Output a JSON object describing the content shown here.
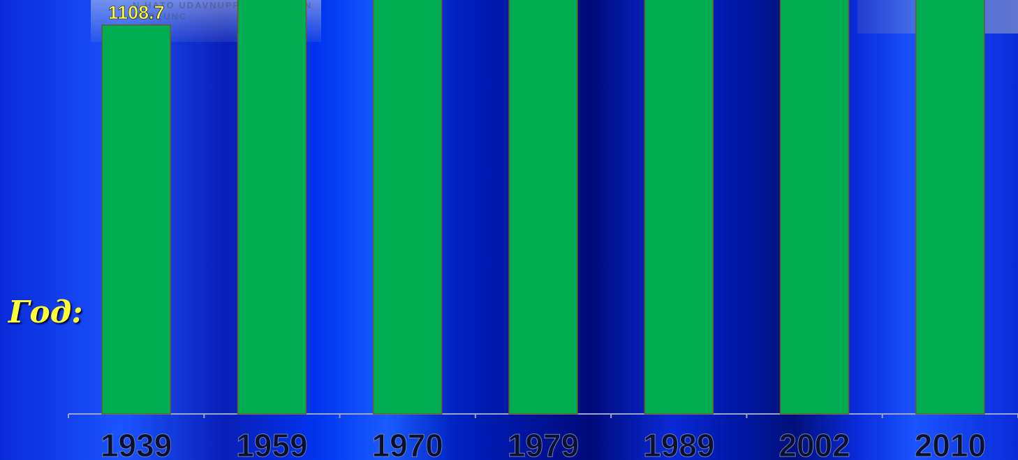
{
  "watermark_text": "N HATO UDAVNUPPIE OTBETA N UEDEUNC",
  "year_label": "Год:",
  "chart_data": {
    "type": "bar",
    "categories": [
      "1939",
      "1959",
      "1970",
      "1979",
      "1989",
      "2002",
      "2010"
    ],
    "values": [
      1108.7,
      null,
      null,
      null,
      null,
      null,
      null
    ],
    "data_labels": [
      "1108.7",
      "",
      "",
      "",
      "",
      "",
      ""
    ],
    "title": "",
    "xlabel": "",
    "ylabel": "",
    "ylim": [
      0,
      1180
    ],
    "grid": false,
    "bar_color": "#00ad50",
    "label_color": "#ffff33",
    "tick_label_color": "#0a1030"
  }
}
